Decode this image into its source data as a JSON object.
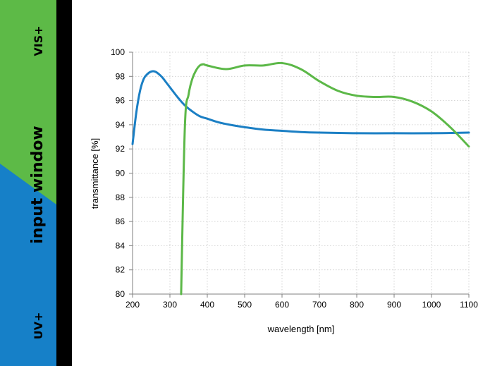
{
  "sidebar": {
    "label_top": "VIS+",
    "label_middle": "input window",
    "label_bottom": "UV+",
    "colors": {
      "vis": "#5dba47",
      "uv": "#1680c8"
    }
  },
  "chart_data": {
    "type": "line",
    "title": "",
    "xlabel": "wavelength [nm]",
    "ylabel": "transmittance [%]",
    "xlim": [
      200,
      1100
    ],
    "ylim": [
      80,
      100
    ],
    "xticks": [
      200,
      300,
      400,
      500,
      600,
      700,
      800,
      900,
      1000,
      1100
    ],
    "yticks": [
      80,
      82,
      84,
      86,
      88,
      90,
      92,
      94,
      96,
      98,
      100
    ],
    "grid": true,
    "legend": "none",
    "series": [
      {
        "color": "#1b7fc4",
        "x": [
          200,
          210,
          220,
          230,
          240,
          250,
          260,
          270,
          280,
          290,
          300,
          320,
          340,
          360,
          380,
          400,
          430,
          460,
          500,
          550,
          600,
          650,
          700,
          800,
          900,
          1000,
          1100
        ],
        "y": [
          92.4,
          95.0,
          96.8,
          97.8,
          98.2,
          98.4,
          98.4,
          98.2,
          97.9,
          97.5,
          97.1,
          96.3,
          95.6,
          95.1,
          94.7,
          94.5,
          94.2,
          94.0,
          93.8,
          93.6,
          93.5,
          93.4,
          93.35,
          93.3,
          93.3,
          93.3,
          93.35
        ]
      },
      {
        "color": "#5cb848",
        "x": [
          330,
          340,
          350,
          360,
          370,
          380,
          390,
          400,
          450,
          500,
          550,
          600,
          650,
          700,
          750,
          800,
          850,
          900,
          950,
          1000,
          1050,
          1100
        ],
        "y": [
          80.0,
          93.8,
          96.5,
          97.8,
          98.5,
          98.9,
          99.0,
          98.9,
          98.6,
          98.9,
          98.9,
          99.1,
          98.6,
          97.6,
          96.8,
          96.4,
          96.3,
          96.3,
          95.9,
          95.1,
          93.8,
          92.2
        ]
      }
    ]
  }
}
